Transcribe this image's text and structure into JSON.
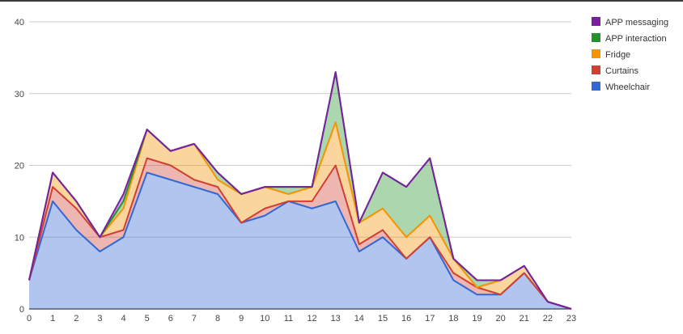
{
  "chart_data": {
    "type": "area",
    "stacked": true,
    "x": [
      0,
      1,
      2,
      3,
      4,
      5,
      6,
      7,
      8,
      9,
      10,
      11,
      12,
      13,
      14,
      15,
      16,
      17,
      18,
      19,
      20,
      21,
      22,
      23
    ],
    "series": [
      {
        "name": "Wheelchair",
        "color": "#3367d6",
        "values": [
          4,
          15,
          11,
          8,
          10,
          19,
          18,
          17,
          16,
          12,
          13,
          15,
          14,
          15,
          8,
          10,
          7,
          10,
          4,
          2,
          2,
          5,
          1,
          0
        ]
      },
      {
        "name": "Curtains",
        "color": "#d23f31",
        "values": [
          0,
          2,
          3,
          2,
          1,
          2,
          2,
          1,
          1,
          0,
          1,
          0,
          1,
          5,
          1,
          1,
          0,
          0,
          1,
          1,
          0,
          0,
          0,
          0
        ]
      },
      {
        "name": "Fridge",
        "color": "#f39400",
        "values": [
          0,
          2,
          1,
          0,
          3,
          4,
          2,
          5,
          1,
          4,
          3,
          1,
          2,
          6,
          3,
          3,
          3,
          3,
          2,
          0,
          2,
          1,
          0,
          0
        ]
      },
      {
        "name": "APP interaction",
        "color": "#22922b",
        "values": [
          0,
          0,
          0,
          0,
          1,
          0,
          0,
          0,
          1,
          0,
          0,
          1,
          0,
          7,
          0,
          5,
          7,
          8,
          0,
          1,
          0,
          0,
          0,
          0
        ]
      },
      {
        "name": "APP messaging",
        "color": "#7b1fa2",
        "values": [
          0,
          0,
          0,
          0,
          1,
          0,
          0,
          0,
          0,
          0,
          0,
          0,
          0,
          0,
          0,
          0,
          0,
          0,
          0,
          0,
          0,
          0,
          0,
          0
        ]
      }
    ],
    "ylim": [
      0,
      40
    ],
    "yticks": [
      "0",
      "10",
      "20",
      "30",
      "40"
    ],
    "xticks": [
      "0",
      "1",
      "2",
      "3",
      "4",
      "5",
      "6",
      "7",
      "8",
      "9",
      "10",
      "11",
      "12",
      "13",
      "14",
      "15",
      "16",
      "17",
      "18",
      "19",
      "20",
      "21",
      "22",
      "23"
    ],
    "grid": true,
    "legend_position": "right",
    "legend_order": [
      "APP messaging",
      "APP interaction",
      "Fridge",
      "Curtains",
      "Wheelchair"
    ],
    "title": "",
    "xlabel": "",
    "ylabel": ""
  }
}
